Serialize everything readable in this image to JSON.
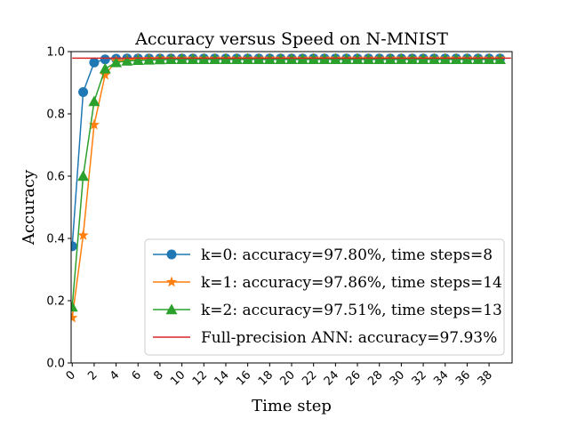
{
  "chart_data": {
    "type": "line",
    "title": "Accuracy versus Speed on N-MNIST",
    "xlabel": "Time step",
    "ylabel": "Accuracy",
    "xlim": [
      -0.1,
      40.1
    ],
    "ylim": [
      0.0,
      1.0
    ],
    "xticks": [
      0,
      2,
      4,
      6,
      8,
      10,
      12,
      14,
      16,
      18,
      20,
      22,
      24,
      26,
      28,
      30,
      32,
      34,
      36,
      38
    ],
    "xtick_labels": [
      "0",
      "2",
      "4",
      "6",
      "8",
      "10",
      "12",
      "14",
      "16",
      "18",
      "20",
      "22",
      "24",
      "26",
      "28",
      "30",
      "32",
      "34",
      "36",
      "38"
    ],
    "yticks": [
      0.0,
      0.2,
      0.4,
      0.6,
      0.8,
      1.0
    ],
    "ytick_labels": [
      "0.0",
      "0.2",
      "0.4",
      "0.6",
      "0.8",
      "1.0"
    ],
    "grid": false,
    "legend_position": "lower-right",
    "series": [
      {
        "name": "k=0: accuracy=97.80%, time steps=8",
        "color": "#1f77b4",
        "marker": "circle",
        "x": [
          0,
          1,
          2,
          3,
          4,
          5,
          6,
          7,
          8,
          9,
          10,
          11,
          12,
          13,
          14,
          15,
          16,
          17,
          18,
          19,
          20,
          21,
          22,
          23,
          24,
          25,
          26,
          27,
          28,
          29,
          30,
          31,
          32,
          33,
          34,
          35,
          36,
          37,
          38,
          39
        ],
        "values": [
          0.375,
          0.87,
          0.965,
          0.975,
          0.977,
          0.978,
          0.978,
          0.978,
          0.978,
          0.978,
          0.978,
          0.978,
          0.978,
          0.978,
          0.978,
          0.978,
          0.978,
          0.978,
          0.978,
          0.978,
          0.978,
          0.978,
          0.978,
          0.978,
          0.978,
          0.978,
          0.978,
          0.978,
          0.978,
          0.978,
          0.978,
          0.978,
          0.978,
          0.978,
          0.978,
          0.978,
          0.978,
          0.978,
          0.978,
          0.978
        ]
      },
      {
        "name": "k=1: accuracy=97.86%, time steps=14",
        "color": "#ff7f0e",
        "marker": "star",
        "x": [
          0,
          1,
          2,
          3,
          4,
          5,
          6,
          7,
          8,
          9,
          10,
          11,
          12,
          13,
          14,
          15,
          16,
          17,
          18,
          19,
          20,
          21,
          22,
          23,
          24,
          25,
          26,
          27,
          28,
          29,
          30,
          31,
          32,
          33,
          34,
          35,
          36,
          37,
          38,
          39
        ],
        "values": [
          0.145,
          0.41,
          0.765,
          0.925,
          0.97,
          0.974,
          0.976,
          0.977,
          0.978,
          0.978,
          0.978,
          0.978,
          0.978,
          0.978,
          0.978,
          0.978,
          0.978,
          0.978,
          0.978,
          0.978,
          0.978,
          0.978,
          0.978,
          0.978,
          0.978,
          0.978,
          0.978,
          0.978,
          0.978,
          0.978,
          0.978,
          0.978,
          0.978,
          0.978,
          0.978,
          0.978,
          0.978,
          0.978,
          0.978,
          0.978
        ]
      },
      {
        "name": "k=2: accuracy=97.51%, time steps=13",
        "color": "#2ca02c",
        "marker": "triangle",
        "x": [
          0,
          1,
          2,
          3,
          4,
          5,
          6,
          7,
          8,
          9,
          10,
          11,
          12,
          13,
          14,
          15,
          16,
          17,
          18,
          19,
          20,
          21,
          22,
          23,
          24,
          25,
          26,
          27,
          28,
          29,
          30,
          31,
          32,
          33,
          34,
          35,
          36,
          37,
          38,
          39
        ],
        "values": [
          0.18,
          0.6,
          0.84,
          0.945,
          0.965,
          0.97,
          0.972,
          0.973,
          0.974,
          0.975,
          0.975,
          0.975,
          0.975,
          0.975,
          0.975,
          0.975,
          0.975,
          0.975,
          0.975,
          0.975,
          0.975,
          0.975,
          0.975,
          0.975,
          0.975,
          0.975,
          0.975,
          0.975,
          0.975,
          0.975,
          0.975,
          0.975,
          0.975,
          0.975,
          0.975,
          0.975,
          0.975,
          0.975,
          0.975,
          0.975
        ]
      },
      {
        "name": "Full-precision ANN: accuracy=97.93%",
        "color": "#d62728",
        "marker": "none",
        "x": [
          0,
          40
        ],
        "values": [
          0.979,
          0.979
        ]
      }
    ]
  }
}
